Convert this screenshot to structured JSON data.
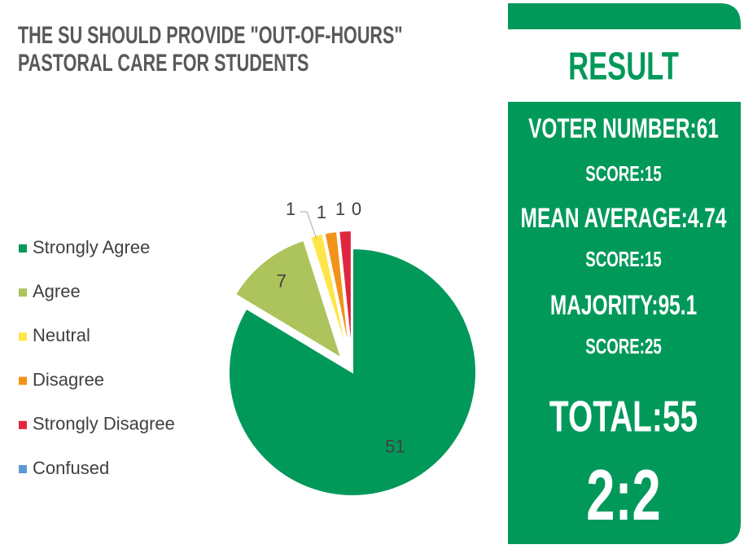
{
  "chart_data": {
    "type": "pie",
    "title": [
      "THE SU SHOULD PROVIDE \"OUT-OF-HOURS\"",
      "PASTORAL CARE FOR STUDENTS"
    ],
    "categories": [
      "Strongly Agree",
      "Agree",
      "Neutral",
      "Disagree",
      "Strongly Disagree",
      "Confused"
    ],
    "values": [
      51,
      7,
      1,
      1,
      1,
      0
    ],
    "colors": [
      "#00995a",
      "#adc35b",
      "#ffe548",
      "#f39219",
      "#e0263f",
      "#5b9bd5"
    ],
    "legend": "left"
  },
  "result": {
    "heading": "RESULT",
    "lines": [
      "VOTER NUMBER:61",
      "SCORE:15",
      "MEAN AVERAGE:4.74",
      "SCORE:15",
      "MAJORITY:95.1",
      "SCORE:25"
    ],
    "total": "TOTAL:55",
    "grade": "2:2"
  }
}
